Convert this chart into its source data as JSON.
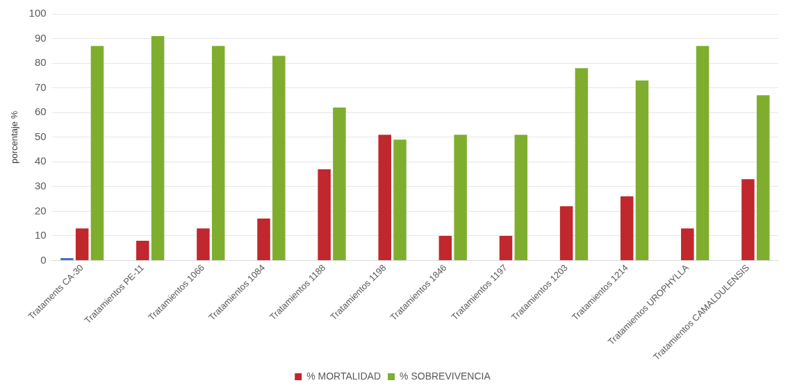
{
  "chart_data": {
    "type": "bar",
    "ylabel": "porcentaje %",
    "categories": [
      "Trataments CA-30",
      "Tratamientos PE-11",
      "Tratamientos 1066",
      "Tratamientos 1084",
      "Tratamientos 1188",
      "Tratamientos 1198",
      "Tratamientos 1846",
      "Tratamientos 1197",
      "Tratamientos 1203",
      "Tratamientos 1214",
      "Tratamientos UROPHYLLA",
      "Tratamientos CAMALDULENSIS"
    ],
    "series": [
      {
        "color": "#4472c4",
        "values": [
          1,
          null,
          null,
          null,
          null,
          null,
          null,
          null,
          null,
          null,
          null,
          null
        ]
      },
      {
        "name": "% MORTALIDAD",
        "color": "#c0282d",
        "values": [
          13,
          8,
          13,
          17,
          37,
          51,
          10,
          10,
          22,
          26,
          13,
          33
        ]
      },
      {
        "name": "% SOBREVIVENCIA",
        "color": "#7fae2e",
        "values": [
          87,
          91,
          87,
          83,
          62,
          49,
          51,
          51,
          78,
          73,
          87,
          67
        ]
      }
    ],
    "ylim": [
      0,
      100
    ],
    "yticks": [
      0,
      10,
      20,
      30,
      40,
      50,
      60,
      70,
      80,
      90,
      100
    ],
    "grid": "y",
    "legend": "bottom"
  }
}
